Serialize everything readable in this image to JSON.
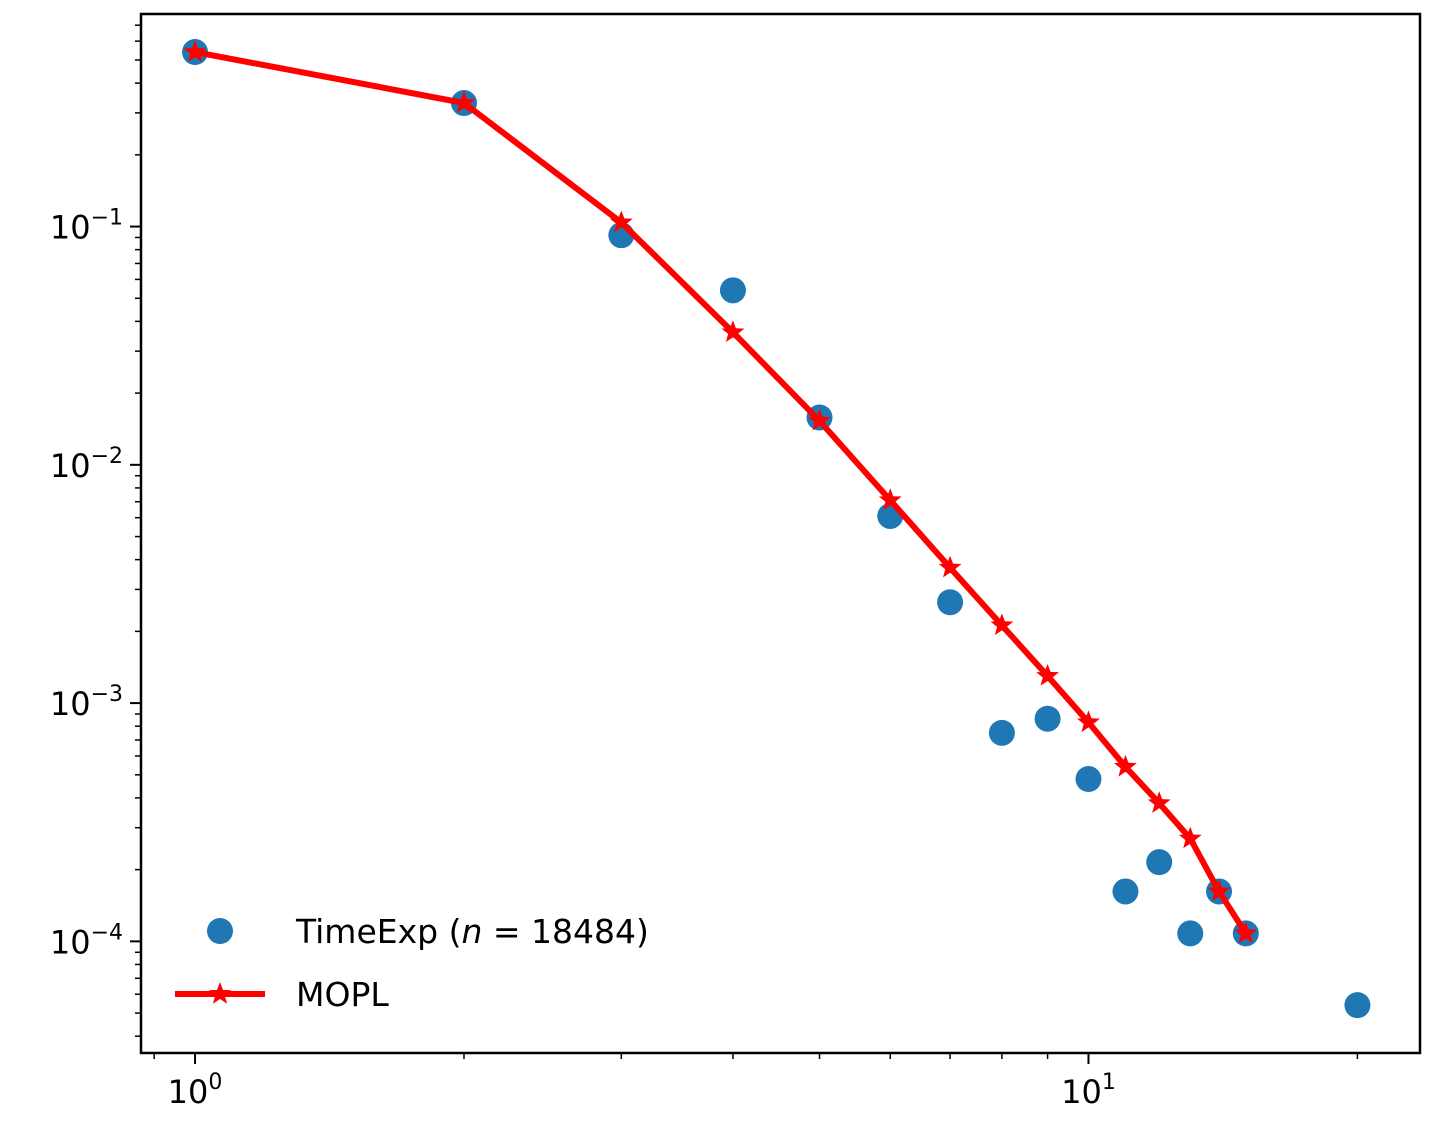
{
  "chart_data": {
    "type": "scatter",
    "title": "",
    "xlabel": "",
    "ylabel": "",
    "xscale": "log",
    "yscale": "log",
    "xlim": [
      0.87,
      23.5
    ],
    "ylim": [
      3.4e-05,
      0.78
    ],
    "grid": false,
    "legend_position": "lower-left",
    "x_tick_labels": [
      {
        "value": 1,
        "base": "10",
        "exp": "0"
      },
      {
        "value": 10,
        "base": "10",
        "exp": "1"
      }
    ],
    "y_tick_labels": [
      {
        "value": 0.1,
        "base": "10",
        "exp": "−1"
      },
      {
        "value": 0.01,
        "base": "10",
        "exp": "−2"
      },
      {
        "value": 0.001,
        "base": "10",
        "exp": "−3"
      },
      {
        "value": 0.0001,
        "base": "10",
        "exp": "−4"
      }
    ],
    "series": [
      {
        "name_prefix": "TimeExp (",
        "name_var": "n",
        "name_suffix": " = 18484)",
        "style": "scatter",
        "color": "#1f77b4",
        "x": [
          1,
          2,
          3,
          4,
          5,
          6,
          7,
          8,
          9,
          10,
          11,
          12,
          13,
          14,
          15,
          20
        ],
        "y": [
          0.54,
          0.33,
          0.092,
          0.054,
          0.0158,
          0.0061,
          0.00265,
          0.00075,
          0.00086,
          0.00048,
          0.000162,
          0.000215,
          0.000108,
          0.000162,
          0.000108,
          5.4e-05
        ]
      },
      {
        "name": "MOPL",
        "style": "line-star",
        "color": "#ff0000",
        "x": [
          1,
          2,
          3,
          4,
          5,
          6,
          7,
          8,
          9,
          10,
          11,
          12,
          13,
          14,
          15
        ],
        "y": [
          0.54,
          0.33,
          0.104,
          0.036,
          0.0153,
          0.0071,
          0.0037,
          0.00212,
          0.0013,
          0.00083,
          0.00054,
          0.00038,
          0.00027,
          0.000162,
          0.000108
        ]
      }
    ]
  }
}
